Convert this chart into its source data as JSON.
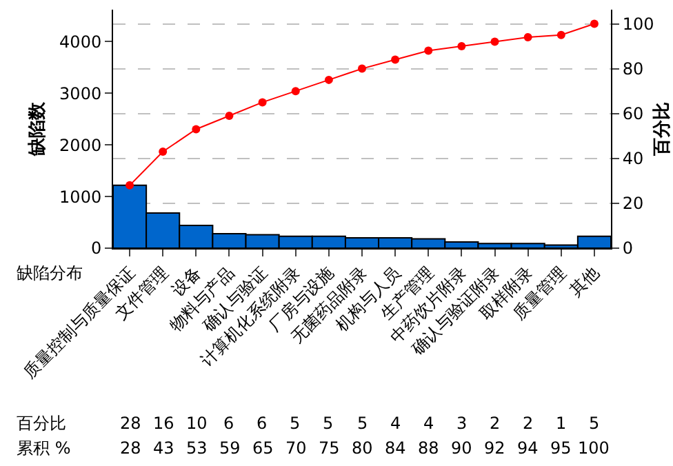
{
  "chart_data": {
    "type": "bar",
    "xlabel": "缺陷分布",
    "ylabel": "缺陷数",
    "y2label": "百分比",
    "categories": [
      "质量控制与质量保证",
      "文件管理",
      "设备",
      "物料与产品",
      "确认与验证",
      "计算机化系统附录",
      "厂房与设施",
      "无菌药品附录",
      "机构与人员",
      "生产管理",
      "中药饮片附录",
      "确认与验证附录",
      "取样附录",
      "质量管理",
      "其他"
    ],
    "series": [
      {
        "color": "#0066cc",
        "values": [
          1220,
          680,
          440,
          280,
          260,
          230,
          230,
          200,
          200,
          180,
          120,
          90,
          90,
          60,
          230
        ]
      },
      {
        "type": "line",
        "axis": "y2",
        "color": "#ff0000",
        "values": [
          28,
          43,
          53,
          59,
          65,
          70,
          75,
          80,
          84,
          88,
          90,
          92,
          94,
          95,
          100
        ],
        "value_labels": [
          "28",
          "43",
          "53",
          "59",
          "65",
          "70",
          "75",
          "80",
          "84",
          "88",
          "90",
          "92",
          "94",
          "95",
          "100"
        ]
      }
    ],
    "annotations": [
      "百分比",
      "28",
      "16",
      "10",
      "6",
      "6",
      "5",
      "5",
      "5",
      "4",
      "4",
      "3",
      "2",
      "2",
      "1",
      "5",
      "累积 %"
    ],
    "ylim": [
      0,
      4620
    ],
    "yticks": [
      0,
      1000,
      2000,
      3000,
      4000
    ],
    "y2lim": [
      0,
      106.3
    ],
    "y2ticks": [
      0,
      20,
      40,
      60,
      80,
      100
    ],
    "grid": true,
    "legend": false,
    "marker": "circle",
    "line_style": "solid"
  }
}
